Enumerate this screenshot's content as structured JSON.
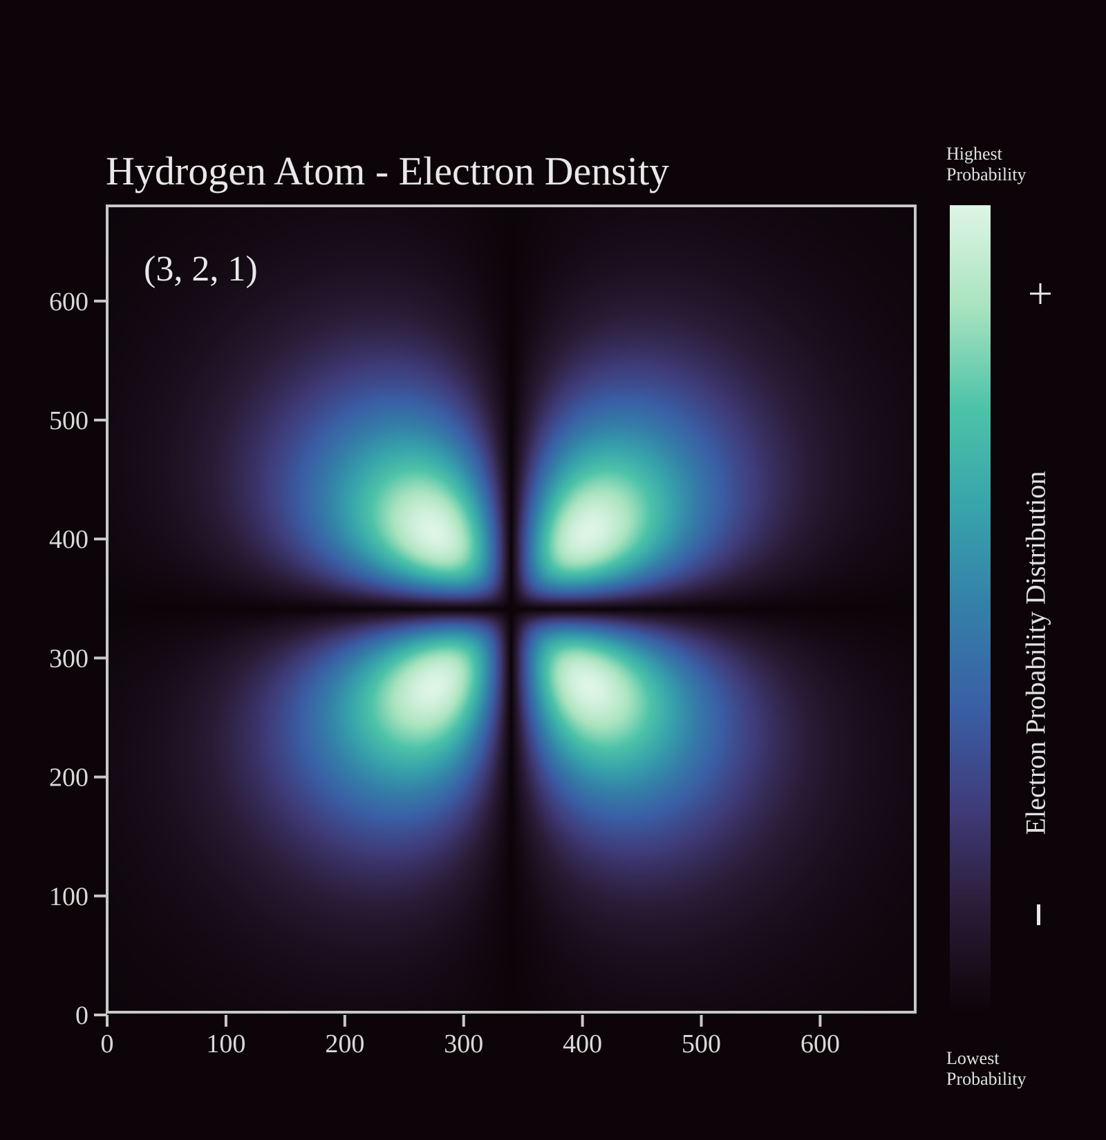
{
  "chart_data": {
    "type": "heatmap",
    "title": "Hydrogen Atom - Electron Density",
    "annotation": "(3, 2, 1)",
    "orbital": {
      "n": 3,
      "l": 2,
      "m": 1
    },
    "x_ticks": [
      0,
      100,
      200,
      300,
      400,
      500,
      600
    ],
    "y_ticks": [
      0,
      100,
      200,
      300,
      400,
      500,
      600
    ],
    "xlim": [
      0,
      680
    ],
    "ylim": [
      0,
      680
    ],
    "center": [
      340,
      340
    ],
    "lobe_peaks": [
      [
        290,
        390
      ],
      [
        390,
        390
      ],
      [
        290,
        290
      ],
      [
        390,
        290
      ]
    ],
    "colorbar": {
      "label": "Electron Probability Distribution",
      "top_label": "Highest Probability",
      "bottom_label": "Lowest Probability",
      "plus_symbol": "+",
      "minus_symbol": "−",
      "colormap": "mako",
      "colors": [
        "#0b0408",
        "#2a1b35",
        "#3f3b78",
        "#3a5ea5",
        "#347fa8",
        "#37a3ab",
        "#4dc3a8",
        "#a9e3bf",
        "#def5e5"
      ]
    },
    "grid": false,
    "background": "#0c0408"
  }
}
